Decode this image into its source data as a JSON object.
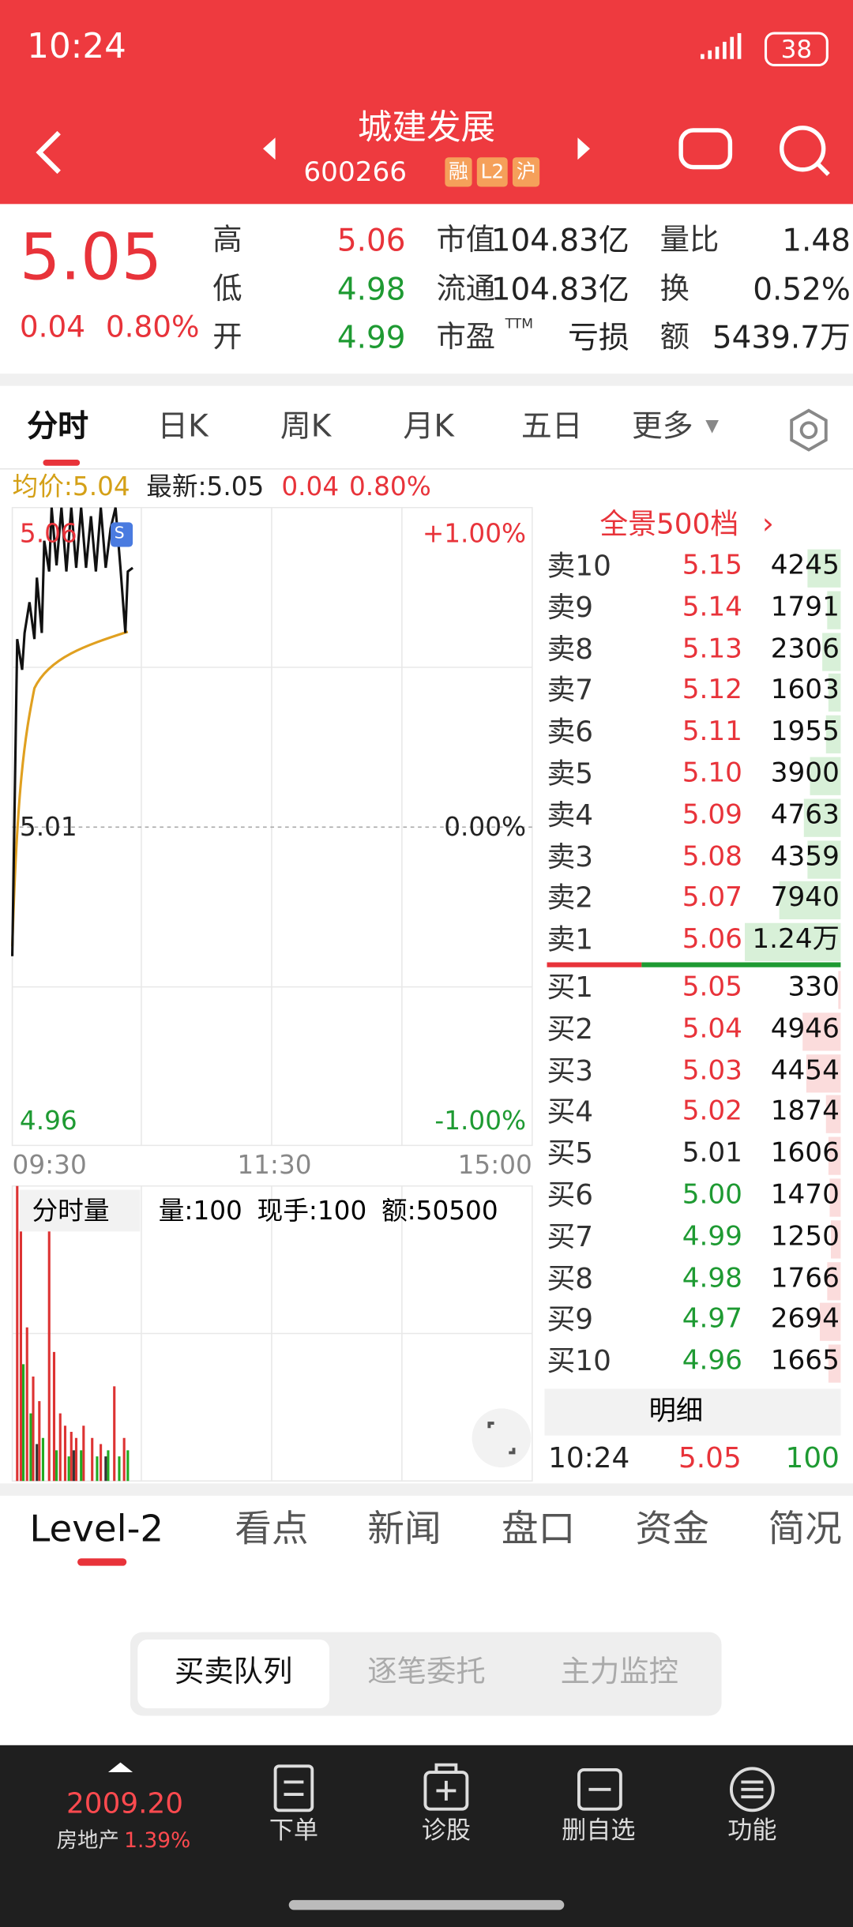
{
  "status_bar": {
    "time": "10:24",
    "battery": "38"
  },
  "header": {
    "title": "城建发展",
    "code": "600266",
    "badges": [
      "融",
      "L2",
      "沪"
    ]
  },
  "quote": {
    "price": "5.05",
    "change": "0.04",
    "change_pct": "0.80%",
    "stats": [
      [
        {
          "label": "高",
          "value": "5.06"
        },
        {
          "label": "市值",
          "value": "104.83亿"
        },
        {
          "label": "量比",
          "value": "1.48"
        }
      ],
      [
        {
          "label": "低",
          "value": "4.98"
        },
        {
          "label": "流通",
          "value": "104.83亿"
        },
        {
          "label": "换",
          "value": "0.52%"
        }
      ],
      [
        {
          "label": "开",
          "value": "4.99"
        },
        {
          "label": "市盈",
          "sup": "TTM",
          "value": "亏损"
        },
        {
          "label": "额",
          "value": "5439.7万"
        }
      ]
    ]
  },
  "chart_tabs": [
    "分时",
    "日K",
    "周K",
    "月K",
    "五日",
    "更多"
  ],
  "intraday": {
    "avg_label": "均价:5.04",
    "latest_label": "最新:5.05",
    "change": "0.04",
    "change_pct": "0.80%",
    "price_high": "5.06",
    "price_mid": "5.01",
    "price_low": "4.96",
    "pct_high": "+1.00%",
    "pct_mid": "0.00%",
    "pct_low": "-1.00%",
    "times": [
      "09:30",
      "11:30",
      "15:00"
    ],
    "marker": "S",
    "volume_title": "分时量",
    "volume_info": [
      "量:100",
      "现手:100",
      "额:50500"
    ]
  },
  "order_book": {
    "title": "全景500档",
    "asks": [
      {
        "label": "卖10",
        "price": "5.15",
        "volume": "4245"
      },
      {
        "label": "卖9",
        "price": "5.14",
        "volume": "1791"
      },
      {
        "label": "卖8",
        "price": "5.13",
        "volume": "2306"
      },
      {
        "label": "卖7",
        "price": "5.12",
        "volume": "1603"
      },
      {
        "label": "卖6",
        "price": "5.11",
        "volume": "1955"
      },
      {
        "label": "卖5",
        "price": "5.10",
        "volume": "3900"
      },
      {
        "label": "卖4",
        "price": "5.09",
        "volume": "4763"
      },
      {
        "label": "卖3",
        "price": "5.08",
        "volume": "4359"
      },
      {
        "label": "卖2",
        "price": "5.07",
        "volume": "7940"
      },
      {
        "label": "卖1",
        "price": "5.06",
        "volume": "1.24万"
      }
    ],
    "bids": [
      {
        "label": "买1",
        "price": "5.05",
        "volume": "330"
      },
      {
        "label": "买2",
        "price": "5.04",
        "volume": "4946"
      },
      {
        "label": "买3",
        "price": "5.03",
        "volume": "4454"
      },
      {
        "label": "买4",
        "price": "5.02",
        "volume": "1874"
      },
      {
        "label": "买5",
        "price": "5.01",
        "volume": "1606"
      },
      {
        "label": "买6",
        "price": "5.00",
        "volume": "1470"
      },
      {
        "label": "买7",
        "price": "4.99",
        "volume": "1250"
      },
      {
        "label": "买8",
        "price": "4.98",
        "volume": "1766"
      },
      {
        "label": "买9",
        "price": "4.97",
        "volume": "2694"
      },
      {
        "label": "买10",
        "price": "4.96",
        "volume": "1665"
      }
    ],
    "detail_title": "明细",
    "detail": {
      "time": "10:24",
      "price": "5.05",
      "volume": "100"
    }
  },
  "bottom_tabs": [
    "Level-2",
    "看点",
    "新闻",
    "盘口",
    "资金",
    "简况"
  ],
  "segments": [
    "买卖队列",
    "逐笔委托",
    "主力监控"
  ],
  "nav": {
    "index_value": "2009.20",
    "index_name": "房地产",
    "index_pct": "1.39%",
    "items": [
      "下单",
      "诊股",
      "删自选",
      "功能"
    ]
  }
}
